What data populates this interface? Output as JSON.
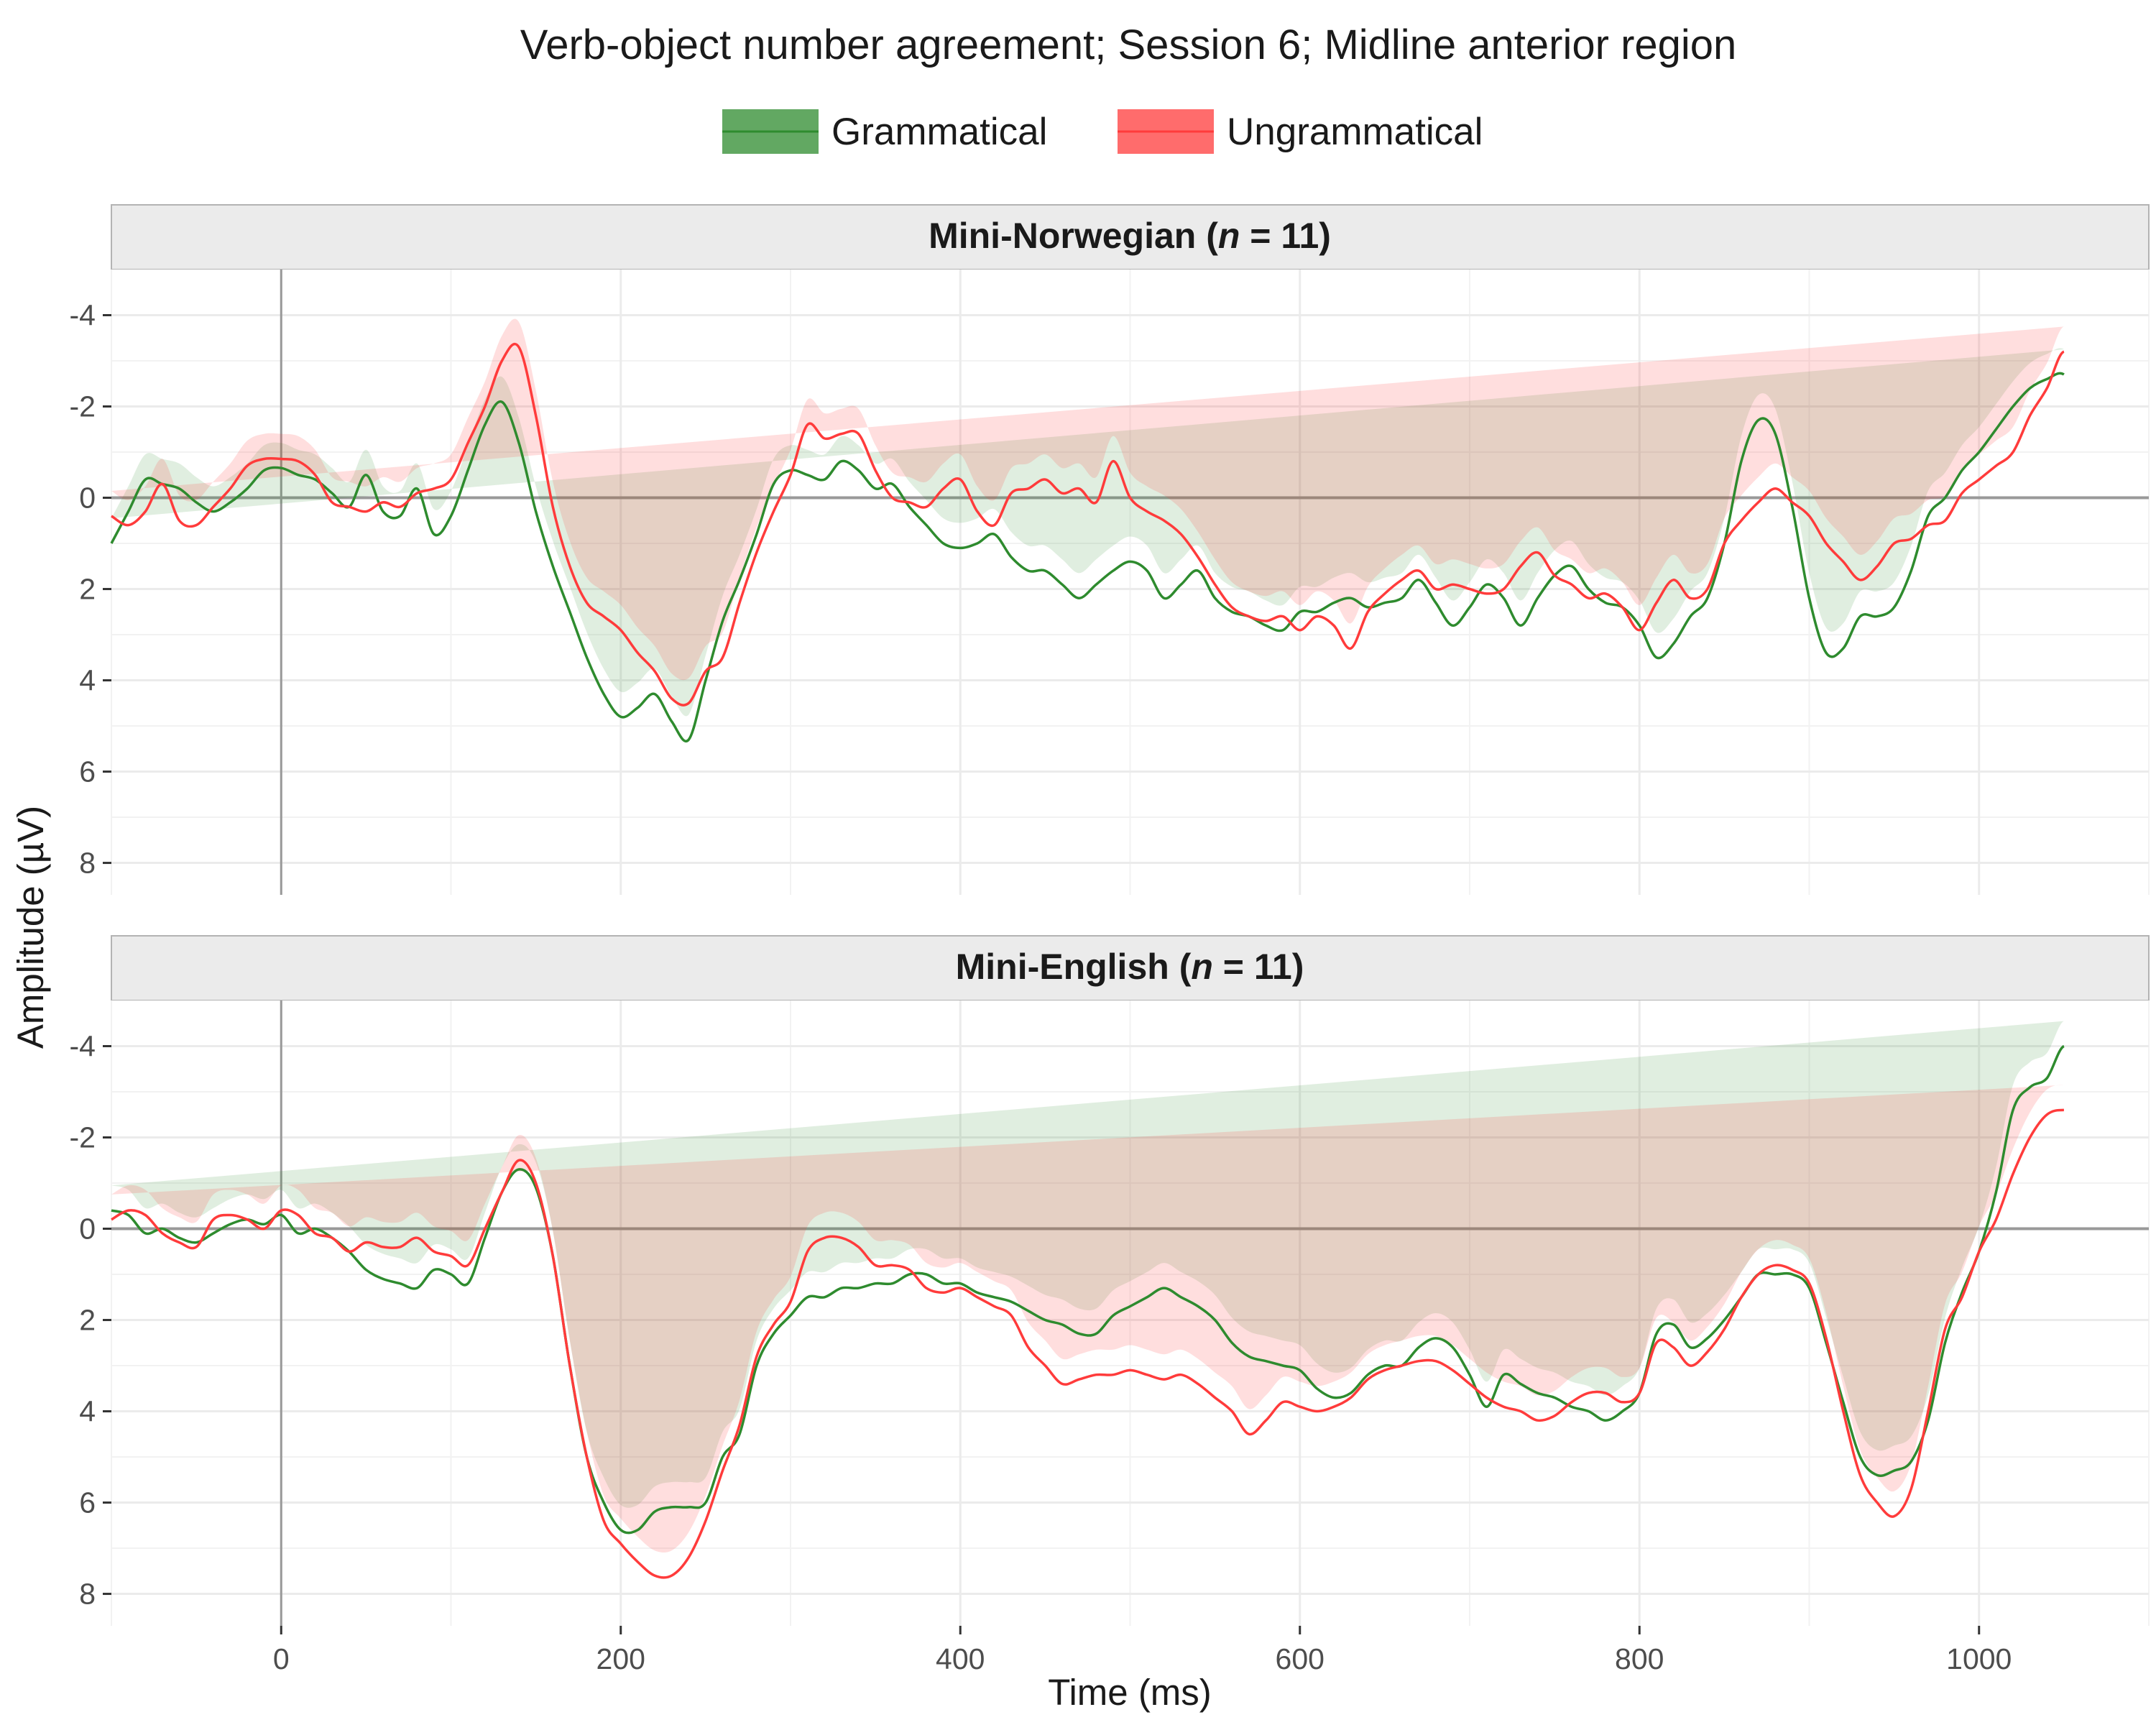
{
  "chart_data": {
    "type": "line",
    "title": "Verb-object number agreement; Session 6; Midline anterior region",
    "xlabel": "Time (ms)",
    "ylabel": "Amplitude (µV)",
    "xlim": [
      -100,
      1100
    ],
    "ylim": [
      -5,
      8.7
    ],
    "y_reversed": true,
    "x_ticks": [
      0,
      200,
      400,
      600,
      800,
      1000
    ],
    "y_ticks": [
      -4,
      -2,
      0,
      2,
      4,
      6,
      8
    ],
    "y_tick_labels": [
      "-4",
      "-2",
      "0",
      "2",
      "4",
      "6",
      "8"
    ],
    "legend_position": "top",
    "grid": true,
    "colors": {
      "Grammatical": "#2e8b2e",
      "Ungrammatical": "#ff3b3b"
    },
    "band_half_width": 0.55,
    "x": [
      -100,
      -90,
      -80,
      -70,
      -60,
      -50,
      -40,
      -30,
      -20,
      -10,
      0,
      10,
      20,
      30,
      40,
      50,
      60,
      70,
      80,
      90,
      100,
      110,
      120,
      130,
      140,
      150,
      160,
      170,
      180,
      190,
      200,
      210,
      220,
      230,
      240,
      250,
      260,
      270,
      280,
      290,
      300,
      310,
      320,
      330,
      340,
      350,
      360,
      370,
      380,
      390,
      400,
      410,
      420,
      430,
      440,
      450,
      460,
      470,
      480,
      490,
      500,
      510,
      520,
      530,
      540,
      550,
      560,
      570,
      580,
      590,
      600,
      610,
      620,
      630,
      640,
      650,
      660,
      670,
      680,
      690,
      700,
      710,
      720,
      730,
      740,
      750,
      760,
      770,
      780,
      790,
      800,
      810,
      820,
      830,
      840,
      850,
      860,
      870,
      880,
      890,
      900,
      910,
      920,
      930,
      940,
      950,
      960,
      970,
      980,
      990,
      1000,
      1010,
      1020,
      1030,
      1040,
      1050,
      1060,
      1070,
      1080,
      1090,
      1100
    ],
    "panels": [
      {
        "label_prefix": "Mini-Norwegian (",
        "label_n": "n",
        "label_suffix": " = 11)",
        "series": [
          {
            "name": "Grammatical",
            "values": [
              1.0,
              0.3,
              -0.4,
              -0.3,
              -0.2,
              0.1,
              0.3,
              0.1,
              -0.2,
              -0.6,
              -0.65,
              -0.5,
              -0.4,
              -0.1,
              0.2,
              -0.5,
              0.3,
              0.4,
              -0.2,
              0.8,
              0.4,
              -0.6,
              -1.6,
              -2.1,
              -1.2,
              0.3,
              1.5,
              2.5,
              3.5,
              4.3,
              4.8,
              4.6,
              4.3,
              4.9,
              5.3,
              4.0,
              2.7,
              1.8,
              0.8,
              -0.3,
              -0.6,
              -0.5,
              -0.4,
              -0.8,
              -0.6,
              -0.2,
              -0.3,
              0.2,
              0.6,
              1.0,
              1.1,
              1.0,
              0.8,
              1.3,
              1.6,
              1.6,
              1.9,
              2.2,
              1.9,
              1.6,
              1.4,
              1.6,
              2.2,
              1.9,
              1.6,
              2.2,
              2.5,
              2.6,
              2.8,
              2.9,
              2.5,
              2.5,
              2.3,
              2.2,
              2.4,
              2.3,
              2.2,
              1.8,
              2.3,
              2.8,
              2.4,
              1.9,
              2.2,
              2.8,
              2.2,
              1.7,
              1.5,
              2.0,
              2.3,
              2.4,
              2.8,
              3.5,
              3.2,
              2.6,
              2.2,
              1.0,
              -0.8,
              -1.7,
              -1.4,
              0.2,
              2.2,
              3.4,
              3.3,
              2.6,
              2.6,
              2.4,
              1.6,
              0.4,
              0.0,
              -0.6,
              -1.0,
              -1.5,
              -2.0,
              -2.4,
              -2.6,
              -2.7,
              -2.1
            ]
          },
          {
            "name": "Ungrammatical",
            "values": [
              0.4,
              0.6,
              0.3,
              -0.3,
              0.5,
              0.6,
              0.2,
              -0.2,
              -0.7,
              -0.85,
              -0.85,
              -0.8,
              -0.5,
              0.1,
              0.2,
              0.3,
              0.1,
              0.2,
              -0.1,
              -0.2,
              -0.4,
              -1.2,
              -2.0,
              -3.0,
              -3.3,
              -1.8,
              0.2,
              1.5,
              2.3,
              2.6,
              2.9,
              3.4,
              3.8,
              4.4,
              4.5,
              3.8,
              3.5,
              2.3,
              1.2,
              0.3,
              -0.5,
              -1.6,
              -1.3,
              -1.4,
              -1.4,
              -0.6,
              0.0,
              0.1,
              0.2,
              -0.2,
              -0.4,
              0.3,
              0.6,
              -0.1,
              -0.2,
              -0.4,
              -0.1,
              -0.2,
              0.1,
              -0.8,
              0.0,
              0.3,
              0.5,
              0.8,
              1.3,
              1.9,
              2.4,
              2.6,
              2.7,
              2.6,
              2.9,
              2.6,
              2.8,
              3.3,
              2.5,
              2.1,
              1.8,
              1.6,
              2.0,
              1.9,
              2.0,
              2.1,
              2.0,
              1.5,
              1.2,
              1.7,
              1.9,
              2.2,
              2.1,
              2.4,
              2.9,
              2.3,
              1.8,
              2.2,
              2.0,
              1.0,
              0.5,
              0.1,
              -0.2,
              0.1,
              0.4,
              1.0,
              1.4,
              1.8,
              1.5,
              1.0,
              0.9,
              0.6,
              0.5,
              -0.1,
              -0.4,
              -0.7,
              -1.0,
              -1.8,
              -2.4,
              -3.2,
              -2.6
            ]
          }
        ]
      },
      {
        "label_prefix": "Mini-English (",
        "label_n": "n",
        "label_suffix": " = 11)",
        "series": [
          {
            "name": "Grammatical",
            "values": [
              -0.4,
              -0.3,
              0.1,
              0.0,
              0.2,
              0.3,
              0.1,
              -0.1,
              -0.2,
              -0.1,
              -0.3,
              0.1,
              0.0,
              0.2,
              0.5,
              0.9,
              1.1,
              1.2,
              1.3,
              0.9,
              1.0,
              1.2,
              0.2,
              -0.8,
              -1.3,
              -0.9,
              0.6,
              3.0,
              5.0,
              6.0,
              6.6,
              6.6,
              6.2,
              6.1,
              6.1,
              6.0,
              5.0,
              4.5,
              3.0,
              2.3,
              1.9,
              1.5,
              1.5,
              1.3,
              1.3,
              1.2,
              1.2,
              1.0,
              1.0,
              1.2,
              1.2,
              1.4,
              1.5,
              1.6,
              1.8,
              2.0,
              2.1,
              2.3,
              2.3,
              1.9,
              1.7,
              1.5,
              1.3,
              1.5,
              1.7,
              2.0,
              2.5,
              2.8,
              2.9,
              3.0,
              3.1,
              3.5,
              3.7,
              3.6,
              3.2,
              3.0,
              3.0,
              2.6,
              2.4,
              2.6,
              3.2,
              3.9,
              3.2,
              3.4,
              3.6,
              3.7,
              3.9,
              4.0,
              4.2,
              4.0,
              3.6,
              2.3,
              2.1,
              2.6,
              2.4,
              2.0,
              1.5,
              1.0,
              1.0,
              1.0,
              1.3,
              2.5,
              3.8,
              5.0,
              5.4,
              5.3,
              5.1,
              4.2,
              2.5,
              1.4,
              0.5,
              -0.8,
              -2.6,
              -3.1,
              -3.3,
              -4.0,
              -3.6
            ]
          },
          {
            "name": "Ungrammatical",
            "values": [
              -0.2,
              -0.4,
              -0.3,
              0.1,
              0.3,
              0.4,
              -0.2,
              -0.3,
              -0.2,
              0.0,
              -0.4,
              -0.3,
              0.1,
              0.2,
              0.5,
              0.3,
              0.4,
              0.4,
              0.2,
              0.5,
              0.6,
              0.8,
              0.0,
              -0.8,
              -1.5,
              -1.0,
              0.6,
              3.0,
              5.0,
              6.4,
              6.9,
              7.3,
              7.6,
              7.6,
              7.2,
              6.4,
              5.3,
              4.3,
              2.8,
              2.1,
              1.6,
              0.5,
              0.2,
              0.2,
              0.4,
              0.8,
              0.8,
              0.9,
              1.3,
              1.4,
              1.3,
              1.5,
              1.7,
              1.9,
              2.6,
              3.0,
              3.4,
              3.3,
              3.2,
              3.2,
              3.1,
              3.2,
              3.3,
              3.2,
              3.4,
              3.7,
              4.0,
              4.5,
              4.2,
              3.8,
              3.9,
              4.0,
              3.9,
              3.7,
              3.3,
              3.1,
              3.0,
              2.9,
              2.9,
              3.1,
              3.4,
              3.7,
              3.9,
              4.0,
              4.2,
              4.1,
              3.8,
              3.6,
              3.6,
              3.8,
              3.6,
              2.5,
              2.6,
              3.0,
              2.7,
              2.2,
              1.5,
              1.0,
              0.8,
              0.9,
              1.2,
              2.4,
              4.0,
              5.4,
              6.0,
              6.3,
              5.7,
              4.0,
              2.2,
              1.5,
              0.5,
              -0.2,
              -1.2,
              -2.0,
              -2.5,
              -2.6,
              -2.5
            ]
          }
        ]
      }
    ]
  }
}
